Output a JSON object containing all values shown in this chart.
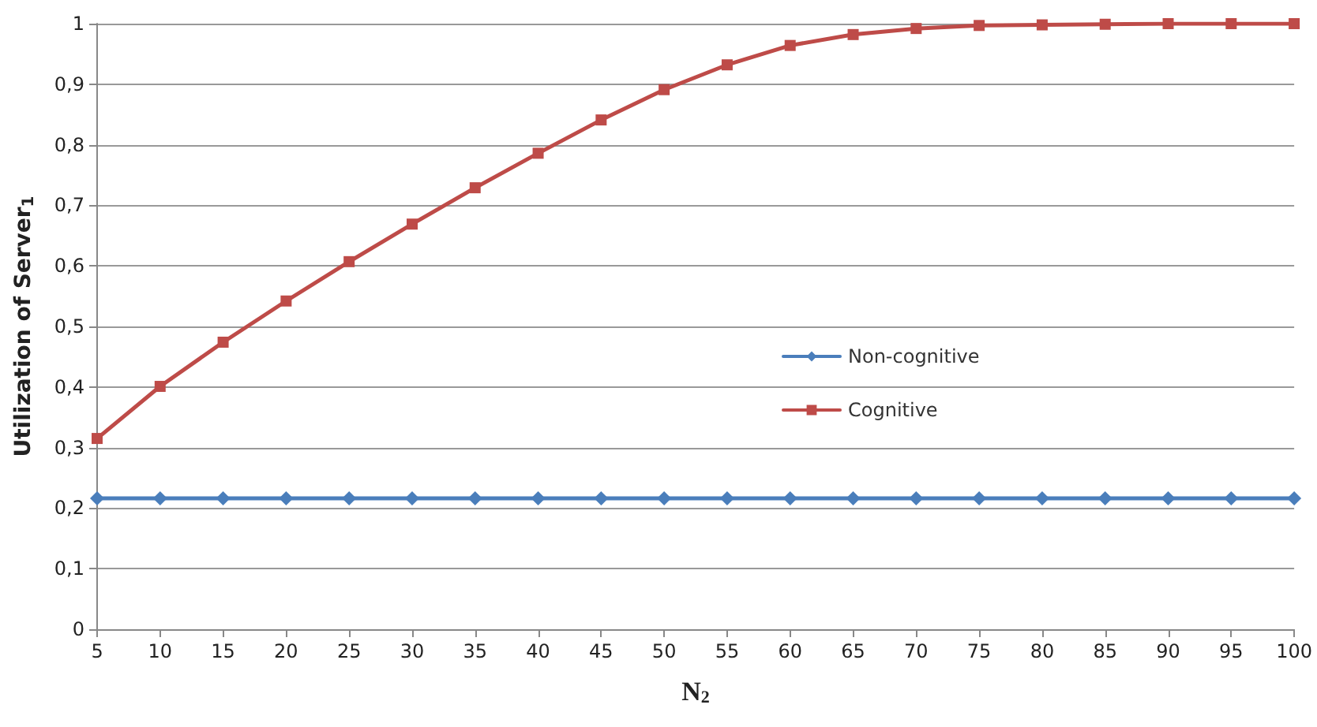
{
  "chart_data": {
    "type": "line",
    "xlabel": "N$_{2}$",
    "ylabel": "Utilization of Server$_{1}$",
    "categories": [
      "5",
      "10",
      "15",
      "20",
      "25",
      "30",
      "35",
      "40",
      "45",
      "50",
      "55",
      "60",
      "65",
      "70",
      "75",
      "80",
      "85",
      "90",
      "95",
      "100"
    ],
    "series": [
      {
        "name": "Non-cognitive",
        "color": "#4a7ebb",
        "marker": "diamond",
        "values": [
          0.216,
          0.216,
          0.216,
          0.216,
          0.216,
          0.216,
          0.216,
          0.216,
          0.216,
          0.216,
          0.216,
          0.216,
          0.216,
          0.216,
          0.216,
          0.216,
          0.216,
          0.216,
          0.216,
          0.216
        ]
      },
      {
        "name": "Cognitive",
        "color": "#be4b48",
        "marker": "square",
        "values": [
          0.315,
          0.401,
          0.474,
          0.542,
          0.607,
          0.669,
          0.729,
          0.786,
          0.841,
          0.891,
          0.932,
          0.964,
          0.982,
          0.992,
          0.997,
          0.998,
          0.999,
          1,
          1,
          1
        ]
      }
    ],
    "ylim": [
      0,
      1
    ],
    "yticks": [
      0,
      {
        "value": 0.1,
        "label": "0,1"
      },
      {
        "value": 0.2,
        "label": "0,2"
      },
      {
        "value": 0.3,
        "label": "0,3"
      },
      {
        "value": 0.4,
        "label": "0,4"
      },
      {
        "value": 0.5,
        "label": "0,5"
      },
      {
        "value": 0.6,
        "label": "0,6"
      },
      {
        "value": 0.7,
        "label": "0,7"
      },
      {
        "value": 0.8,
        "label": "0,8"
      },
      {
        "value": 0.9,
        "label": "0,9"
      },
      1
    ],
    "grid": "y",
    "legend": "right",
    "line_style": "solid"
  }
}
